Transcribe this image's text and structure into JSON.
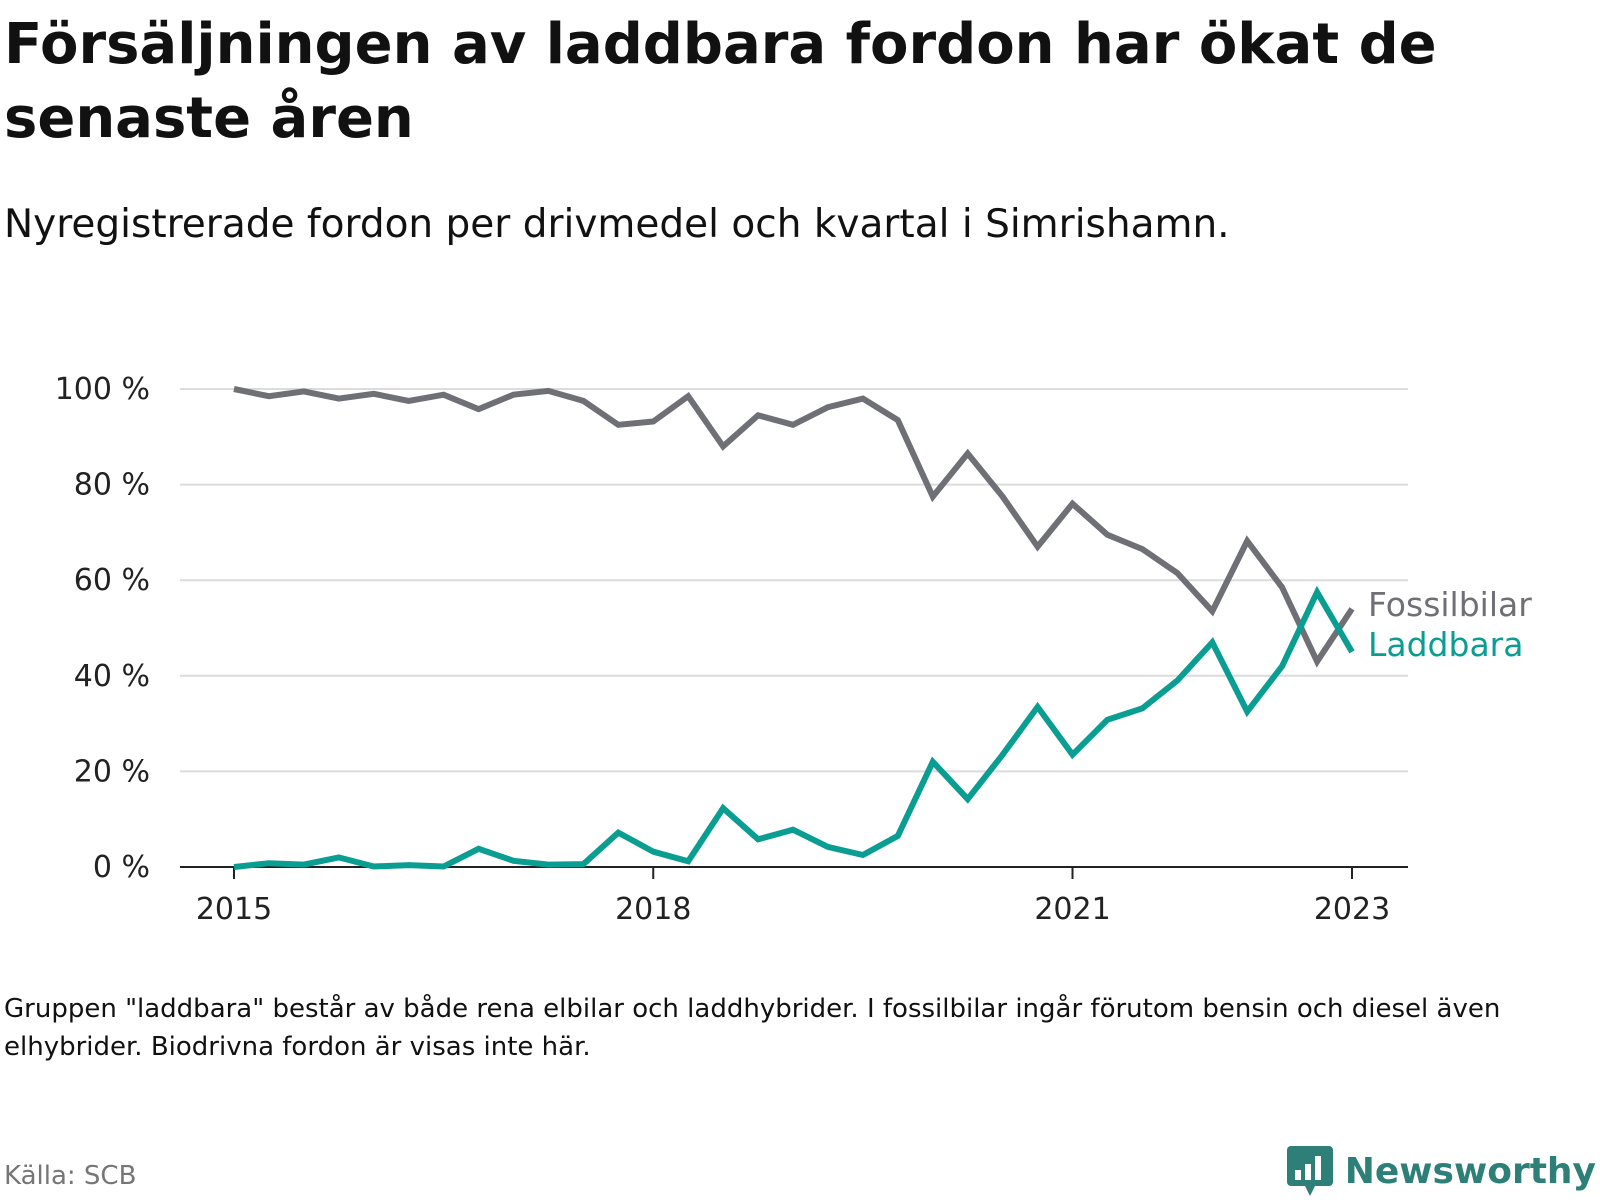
{
  "header": {
    "title": "Försäljningen av laddbara fordon har ökat de senaste åren",
    "subtitle": "Nyregistrerade fordon per drivmedel och kvartal i Simrishamn."
  },
  "footer": {
    "note": "Gruppen \"laddbara\" består av både rena elbilar och laddhybrider. I fossilbilar ingår förutom bensin och diesel även elhybrider. Biodrivna fordon är visas inte här.",
    "source": "Källa: SCB",
    "brand": "Newsworthy",
    "brand_icon": "newsworthy-logo-icon"
  },
  "colors": {
    "fossil": "#6f6f76",
    "laddbara": "#0a9d92",
    "grid": "#dcdcdc",
    "axis": "#222222",
    "tick_text": "#222222",
    "brand": "#2f7f79"
  },
  "chart_data": {
    "type": "line",
    "title": "Försäljningen av laddbara fordon har ökat de senaste åren",
    "subtitle": "Nyregistrerade fordon per drivmedel och kvartal i Simrishamn.",
    "xlabel": "",
    "ylabel": "",
    "x": [
      "2015-Q1",
      "2015-Q2",
      "2015-Q3",
      "2015-Q4",
      "2016-Q1",
      "2016-Q2",
      "2016-Q3",
      "2016-Q4",
      "2017-Q1",
      "2017-Q2",
      "2017-Q3",
      "2017-Q4",
      "2018-Q1",
      "2018-Q2",
      "2018-Q3",
      "2018-Q4",
      "2019-Q1",
      "2019-Q2",
      "2019-Q3",
      "2019-Q4",
      "2020-Q1",
      "2020-Q2",
      "2020-Q3",
      "2020-Q4",
      "2021-Q1",
      "2021-Q2",
      "2021-Q3",
      "2021-Q4",
      "2022-Q1",
      "2022-Q2",
      "2022-Q3",
      "2022-Q4",
      "2023-Q1"
    ],
    "x_ticks": [
      {
        "index": 0,
        "label": "2015"
      },
      {
        "index": 12,
        "label": "2018"
      },
      {
        "index": 24,
        "label": "2021"
      },
      {
        "index": 32,
        "label": "2023"
      }
    ],
    "ylim": [
      0,
      100
    ],
    "y_ticks": [
      0,
      20,
      40,
      60,
      80,
      100
    ],
    "y_tick_labels": [
      "0 %",
      "20 %",
      "40 %",
      "60 %",
      "80 %",
      "100 %"
    ],
    "grid": true,
    "legend": "direct labels at line ends, right",
    "series": [
      {
        "name": "Fossilbilar",
        "color": "#6f6f76",
        "values": [
          100,
          98.5,
          99.5,
          98,
          99,
          97.5,
          98.8,
          95.8,
          98.8,
          99.6,
          97.5,
          92.5,
          93.2,
          98.5,
          88,
          94.5,
          92.5,
          96.2,
          98,
          93.5,
          77.5,
          86.5,
          77.5,
          67,
          76,
          69.5,
          66.5,
          61.5,
          53.5,
          68.2,
          58.5,
          43,
          54
        ]
      },
      {
        "name": "Laddbara",
        "color": "#0a9d92",
        "values": [
          0,
          0.8,
          0.5,
          2,
          0.1,
          0.4,
          0.1,
          3.8,
          1.3,
          0.5,
          0.6,
          7.2,
          3.2,
          1.2,
          12.3,
          5.8,
          7.8,
          4.2,
          2.5,
          6.5,
          22,
          14.2,
          23.5,
          33.5,
          23.5,
          30.8,
          33.2,
          39,
          47,
          32.5,
          42,
          57.5,
          45
        ]
      }
    ]
  }
}
